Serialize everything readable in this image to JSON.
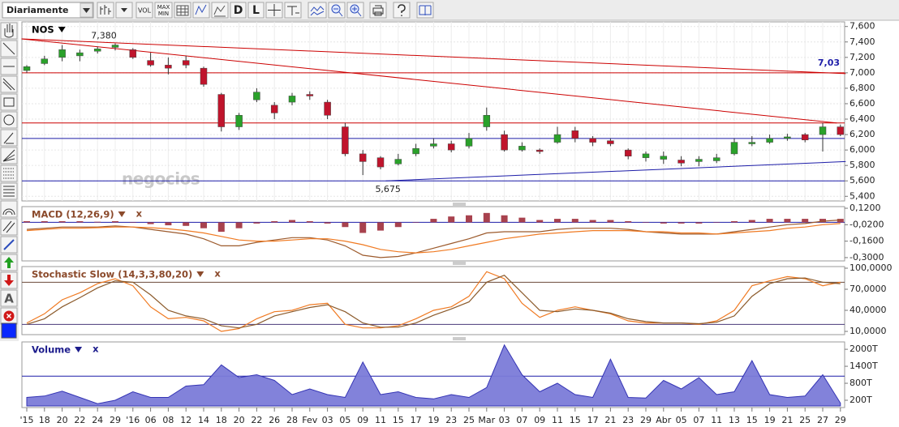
{
  "toolbar": {
    "period": "Diariamente",
    "vol": "VOL",
    "max": "MAX",
    "min": "MIN",
    "d": "D",
    "l": "L"
  },
  "sidebar": {
    "text_tool": "A"
  },
  "chart_data": [
    {
      "type": "candlestick",
      "title": "NOS",
      "watermark": "negocios",
      "categories": [
        "'15",
        "18",
        "20",
        "22",
        "24",
        "29",
        "'16",
        "06",
        "08",
        "12",
        "14",
        "18",
        "20",
        "22",
        "26",
        "28",
        "Fev",
        "03",
        "05",
        "09",
        "11",
        "15",
        "17",
        "19",
        "23",
        "25",
        "Mar",
        "03",
        "07",
        "09",
        "11",
        "15",
        "17",
        "21",
        "23",
        "29",
        "Abr",
        "05",
        "07",
        "11",
        "13",
        "15",
        "19",
        "21",
        "25",
        "27",
        "29"
      ],
      "open": [
        7030,
        7120,
        7200,
        7220,
        7280,
        7330,
        7300,
        7160,
        7100,
        7160,
        7060,
        6720,
        6300,
        6650,
        6580,
        6620,
        6720,
        6620,
        6300,
        5950,
        5900,
        5820,
        5950,
        6050,
        6080,
        6050,
        6300,
        6200,
        6000,
        6000,
        6100,
        6250,
        6150,
        6120,
        6000,
        5900,
        5880,
        5870,
        5850,
        5860,
        5950,
        6080,
        6100,
        6150,
        6200,
        6200,
        6300
      ],
      "high": [
        7100,
        7220,
        7360,
        7300,
        7340,
        7380,
        7320,
        7260,
        7200,
        7220,
        7080,
        6740,
        6480,
        6800,
        6620,
        6740,
        6760,
        6650,
        6350,
        6000,
        5920,
        5950,
        6080,
        6150,
        6120,
        6220,
        6550,
        6250,
        6100,
        6020,
        6300,
        6300,
        6180,
        6150,
        6020,
        5980,
        5980,
        5920,
        5920,
        5950,
        6150,
        6180,
        6200,
        6210,
        6220,
        6350,
        6330
      ],
      "low": [
        7000,
        7100,
        7150,
        7150,
        7250,
        7290,
        7180,
        7080,
        6980,
        7060,
        6820,
        6240,
        6260,
        6620,
        6400,
        6580,
        6650,
        6400,
        5920,
        5675,
        5750,
        5800,
        5920,
        6020,
        5970,
        6020,
        6250,
        5980,
        5980,
        5950,
        6080,
        6100,
        6050,
        6050,
        5880,
        5850,
        5820,
        5790,
        5790,
        5830,
        5930,
        6050,
        6080,
        6120,
        6100,
        5980,
        6180
      ],
      "close": [
        7080,
        7180,
        7300,
        7260,
        7310,
        7360,
        7200,
        7100,
        7060,
        7100,
        6850,
        6300,
        6450,
        6750,
        6480,
        6700,
        6700,
        6450,
        5950,
        5850,
        5780,
        5880,
        6020,
        6080,
        6000,
        6150,
        6450,
        6000,
        6050,
        5980,
        6200,
        6150,
        6100,
        6080,
        5920,
        5950,
        5920,
        5830,
        5880,
        5900,
        6100,
        6100,
        6150,
        6170,
        6130,
        6300,
        6200
      ],
      "up_color": "#2aa12a",
      "down_color": "#c0142c",
      "ylim": [
        5340,
        7660
      ],
      "yticks": [
        {
          "value": 7600,
          "label": "7,600"
        },
        {
          "value": 7400,
          "label": "7,400"
        },
        {
          "value": 7200,
          "label": "7,200"
        },
        {
          "value": 7000,
          "label": "7,000"
        },
        {
          "value": 6800,
          "label": "6,800"
        },
        {
          "value": 6600,
          "label": "6,600"
        },
        {
          "value": 6400,
          "label": "6,400"
        },
        {
          "value": 6200,
          "label": "6,200"
        },
        {
          "value": 6000,
          "label": "6,000"
        },
        {
          "value": 5800,
          "label": "5,800"
        },
        {
          "value": 5600,
          "label": "5,600"
        },
        {
          "value": 5400,
          "label": "5,400"
        }
      ],
      "grid": true,
      "hlines": [
        {
          "value": 7000,
          "color": "#cc0000"
        },
        {
          "value": 6350,
          "color": "#cc0000"
        },
        {
          "value": 6150,
          "color": "#1c1ca8"
        },
        {
          "value": 5600,
          "color": "#1c1ca8"
        }
      ],
      "trendlines": [
        {
          "x": [
            -0.3,
            46.3
          ],
          "values": [
            7440,
            6990
          ],
          "color": "#cc0000"
        },
        {
          "x": [
            -0.3,
            45.8
          ],
          "values": [
            7440,
            6350
          ],
          "color": "#cc0000"
        },
        {
          "x": [
            20.3,
            46.3
          ],
          "values": [
            5600,
            5850
          ],
          "color": "#1c1ca8"
        }
      ],
      "annotations": [
        {
          "value": 7380,
          "label": "7,380"
        },
        {
          "value": 5675,
          "label": "5,675"
        },
        {
          "value": 7030,
          "label": "7,03",
          "color": "#1c1ca8"
        }
      ]
    },
    {
      "type": "combo",
      "title": "MACD (12,26,9)",
      "close_label": "x",
      "title_color": "#8b4a2b",
      "ylim": [
        -0.328,
        0.134
      ],
      "yticks": [
        {
          "value": 0.12,
          "label": "0,1200"
        },
        {
          "value": -0.02,
          "label": "-0,0200"
        },
        {
          "value": -0.16,
          "label": "-0,1600"
        },
        {
          "value": -0.3,
          "label": "-0,3000"
        }
      ],
      "hlines": [
        {
          "value": 0,
          "color": "#1c1ca8"
        }
      ],
      "series": [
        {
          "style": "bar",
          "color": "#a8424e",
          "values": [
            0.01,
            0.01,
            0.01,
            0.01,
            0.005,
            0.01,
            0,
            -0.015,
            -0.025,
            -0.03,
            -0.05,
            -0.08,
            -0.05,
            -0.01,
            0.01,
            0.02,
            0.01,
            -0.01,
            -0.04,
            -0.09,
            -0.07,
            -0.04,
            0,
            0.03,
            0.05,
            0.06,
            0.08,
            0.06,
            0.04,
            0.02,
            0.03,
            0.03,
            0.02,
            0.02,
            0.01,
            0,
            -0.01,
            -0.01,
            -0.01,
            0,
            0.01,
            0.02,
            0.03,
            0.03,
            0.03,
            0.03,
            0.03
          ]
        },
        {
          "style": "line",
          "color": "#9c5a2c",
          "values": [
            -0.06,
            -0.05,
            -0.04,
            -0.04,
            -0.04,
            -0.03,
            -0.04,
            -0.06,
            -0.08,
            -0.1,
            -0.14,
            -0.2,
            -0.2,
            -0.17,
            -0.15,
            -0.13,
            -0.13,
            -0.15,
            -0.2,
            -0.28,
            -0.3,
            -0.29,
            -0.26,
            -0.22,
            -0.18,
            -0.14,
            -0.09,
            -0.08,
            -0.08,
            -0.08,
            -0.06,
            -0.05,
            -0.05,
            -0.05,
            -0.06,
            -0.08,
            -0.09,
            -0.1,
            -0.1,
            -0.1,
            -0.08,
            -0.06,
            -0.04,
            -0.02,
            -0.01,
            0.01,
            0.02
          ]
        },
        {
          "style": "line",
          "color": "#f07a22",
          "values": [
            -0.07,
            -0.06,
            -0.05,
            -0.05,
            -0.045,
            -0.04,
            -0.04,
            -0.045,
            -0.055,
            -0.07,
            -0.09,
            -0.12,
            -0.15,
            -0.16,
            -0.16,
            -0.15,
            -0.14,
            -0.14,
            -0.16,
            -0.19,
            -0.23,
            -0.25,
            -0.26,
            -0.25,
            -0.23,
            -0.2,
            -0.17,
            -0.14,
            -0.12,
            -0.1,
            -0.09,
            -0.08,
            -0.07,
            -0.07,
            -0.07,
            -0.08,
            -0.08,
            -0.09,
            -0.09,
            -0.1,
            -0.09,
            -0.08,
            -0.07,
            -0.05,
            -0.04,
            -0.02,
            -0.01
          ]
        }
      ]
    },
    {
      "type": "combo",
      "title": "Stochastic Slow (14,3,3,80,20)",
      "close_label": "x",
      "title_color": "#8b4a2b",
      "ylim": [
        5.4,
        102.3
      ],
      "yticks": [
        {
          "value": 100,
          "label": "100,0000"
        },
        {
          "value": 70,
          "label": "70,0000"
        },
        {
          "value": 40,
          "label": "40,0000"
        },
        {
          "value": 10,
          "label": "10,0000"
        }
      ],
      "hlines": [
        {
          "value": 80,
          "color": "#6b4a3a"
        },
        {
          "value": 20,
          "color": "#4a3a7a"
        }
      ],
      "series": [
        {
          "style": "line",
          "color": "#f07a22",
          "values": [
            22,
            35,
            55,
            65,
            78,
            85,
            75,
            45,
            28,
            30,
            25,
            10,
            14,
            28,
            38,
            40,
            48,
            50,
            20,
            15,
            15,
            18,
            28,
            40,
            45,
            60,
            95,
            85,
            50,
            30,
            40,
            45,
            40,
            35,
            25,
            22,
            22,
            22,
            20,
            25,
            40,
            75,
            82,
            88,
            85,
            75,
            80
          ]
        },
        {
          "style": "line",
          "color": "#8b5a2b",
          "values": [
            20,
            28,
            45,
            58,
            72,
            82,
            80,
            62,
            40,
            32,
            28,
            18,
            15,
            20,
            32,
            38,
            44,
            48,
            38,
            22,
            16,
            16,
            22,
            33,
            42,
            52,
            80,
            90,
            65,
            40,
            38,
            42,
            40,
            36,
            28,
            24,
            22,
            22,
            21,
            23,
            32,
            60,
            78,
            85,
            86,
            80,
            78
          ]
        }
      ]
    },
    {
      "type": "area",
      "title": "Volume",
      "close_label": "x",
      "title_color": "#1c1c8c",
      "ylim": [
        0,
        2260
      ],
      "yticks": [
        {
          "value": 2000,
          "label": "2000T"
        },
        {
          "value": 1400,
          "label": "1400T"
        },
        {
          "value": 800,
          "label": "800T"
        },
        {
          "value": 200,
          "label": "200T"
        }
      ],
      "hlines": [
        {
          "value": 1050,
          "color": "#1c1ca8"
        }
      ],
      "color": "#7b7bd8",
      "line_color": "#3434b4",
      "values": [
        300,
        350,
        520,
        300,
        80,
        200,
        500,
        300,
        300,
        700,
        750,
        1450,
        1000,
        1100,
        900,
        400,
        600,
        400,
        300,
        1550,
        400,
        500,
        300,
        250,
        400,
        300,
        650,
        2150,
        1100,
        500,
        800,
        400,
        300,
        1650,
        300,
        280,
        900,
        600,
        1000,
        400,
        500,
        1600,
        400,
        300,
        350,
        1100,
        100
      ]
    }
  ]
}
